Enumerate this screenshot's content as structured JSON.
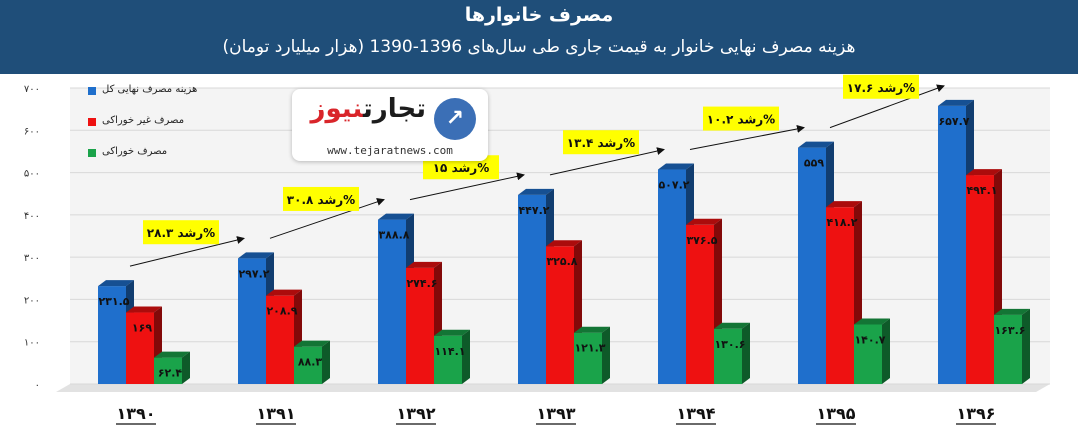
{
  "header": {
    "title": "مصرف خانوارها",
    "subtitle": "هزینه مصرف نهایی خانوار به قیمت جاری طی سال‌های 1396-1390 (هزار میلیارد تومان)"
  },
  "logo": {
    "name_part1": "تجارت",
    "name_part2": "نیوز",
    "url": "www.tejaratnews.com",
    "icon": "logo-arrow-icon",
    "icon_glyph": "↗"
  },
  "colors": {
    "header_bg": "#1f4e79",
    "total": "#1f6fcc",
    "nonfood": "#ee1111",
    "food": "#1aa34a",
    "growth_box": "#ffff00"
  },
  "chart_data": {
    "type": "bar",
    "categories": [
      "۱۳۹۰",
      "۱۳۹۱",
      "۱۳۹۲",
      "۱۳۹۳",
      "۱۳۹۴",
      "۱۳۹۵",
      "۱۳۹۶"
    ],
    "series": [
      {
        "name": "هزینه مصرف نهایی کل",
        "color": "#1f6fcc",
        "values": [
          231.5,
          297.2,
          388.8,
          447.2,
          507.2,
          559,
          657.7
        ],
        "labels": [
          "۲۳۱.۵",
          "۲۹۷.۲",
          "۳۸۸.۸",
          "۴۴۷.۲",
          "۵۰۷.۲",
          "۵۵۹",
          "۶۵۷.۷"
        ]
      },
      {
        "name": "مصرف غیر خوراکی",
        "color": "#ee1111",
        "values": [
          169,
          208.9,
          274.6,
          325.8,
          376.5,
          418.2,
          494.1
        ],
        "labels": [
          "۱۶۹",
          "۲۰۸.۹",
          "۲۷۴.۶",
          "۳۲۵.۸",
          "۳۷۶.۵",
          "۴۱۸.۲",
          "۴۹۴.۱"
        ]
      },
      {
        "name": "مصرف خوراکی",
        "color": "#1aa34a",
        "values": [
          62.4,
          88.3,
          114.1,
          121.3,
          130.6,
          140.7,
          163.6
        ],
        "labels": [
          "۶۲.۴",
          "۸۸.۳",
          "۱۱۴.۱",
          "۱۲۱.۳",
          "۱۳۰.۶",
          "۱۴۰.۷",
          "۱۶۳.۶"
        ]
      }
    ],
    "ylim": [
      0,
      700
    ],
    "yticks": [
      0,
      100,
      200,
      300,
      400,
      500,
      600,
      700
    ],
    "ytick_labels": [
      "۰",
      "۱۰۰",
      "۲۰۰",
      "۳۰۰",
      "۴۰۰",
      "۵۰۰",
      "۶۰۰",
      "۷۰۰"
    ],
    "grid": true,
    "legend": "top-left",
    "annotations": [
      {
        "text": "رشد ۲۸.۳%",
        "values": 28.3
      },
      {
        "text": "رشد ۳۰.۸%",
        "values": 30.8
      },
      {
        "text": "رشد ۱۵%",
        "values": 15
      },
      {
        "text": "رشد ۱۳.۴%",
        "values": 13.4
      },
      {
        "text": "رشد ۱۰.۲%",
        "values": 10.2
      },
      {
        "text": "رشد ۱۷.۶%",
        "values": 17.6
      }
    ]
  }
}
